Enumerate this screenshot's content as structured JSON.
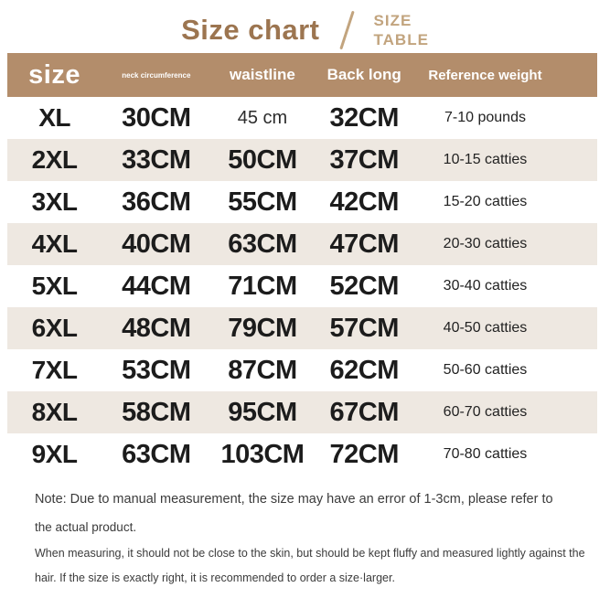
{
  "title": {
    "main": "Size chart",
    "sub_line1": "SIZE",
    "sub_line2": "TABLE"
  },
  "chart_data": {
    "type": "table",
    "title": "Size chart",
    "columns": [
      {
        "key": "size",
        "label": "size"
      },
      {
        "key": "neck",
        "label": "neck circumference"
      },
      {
        "key": "waist",
        "label": "waistline"
      },
      {
        "key": "back",
        "label": "Back long"
      },
      {
        "key": "weight",
        "label": "Reference weight"
      }
    ],
    "rows": [
      {
        "size": "XL",
        "neck": "30CM",
        "waist": "45 cm",
        "back": "32CM",
        "weight": "7-10 pounds",
        "light_cells": [
          "waist"
        ]
      },
      {
        "size": "2XL",
        "neck": "33CM",
        "waist": "50CM",
        "back": "37CM",
        "weight": "10-15 catties",
        "light_cells": []
      },
      {
        "size": "3XL",
        "neck": "36CM",
        "waist": "55CM",
        "back": "42CM",
        "weight": "15-20 catties",
        "light_cells": []
      },
      {
        "size": "4XL",
        "neck": "40CM",
        "waist": "63CM",
        "back": "47CM",
        "weight": "20-30 catties",
        "light_cells": []
      },
      {
        "size": "5XL",
        "neck": "44CM",
        "waist": "71CM",
        "back": "52CM",
        "weight": "30-40 catties",
        "light_cells": []
      },
      {
        "size": "6XL",
        "neck": "48CM",
        "waist": "79CM",
        "back": "57CM",
        "weight": "40-50 catties",
        "light_cells": []
      },
      {
        "size": "7XL",
        "neck": "53CM",
        "waist": "87CM",
        "back": "62CM",
        "weight": "50-60 catties",
        "light_cells": []
      },
      {
        "size": "8XL",
        "neck": "58CM",
        "waist": "95CM",
        "back": "67CM",
        "weight": "60-70 catties",
        "light_cells": []
      },
      {
        "size": "9XL",
        "neck": "63CM",
        "waist": "103CM",
        "back": "72CM",
        "weight": "70-80 catties",
        "light_cells": []
      }
    ]
  },
  "notes": {
    "lines": [
      "Note: Due to manual measurement, the size may have an error of 1-3cm, please refer to",
      "the actual product.",
      "When measuring, it should not be close to the skin, but should be kept fluffy and measured lightly against the",
      "hair. If the size is exactly right, it is recommended to order a size·larger."
    ]
  },
  "colors": {
    "accent_brown": "#9c7550",
    "subtitle_tan": "#c2a47e",
    "header_bg": "#b38d6b",
    "header_text": "#ffffff",
    "row_alt_cream": "#eee8e1",
    "body_text": "#1c1c1c",
    "note_text": "#3b3b3b"
  }
}
